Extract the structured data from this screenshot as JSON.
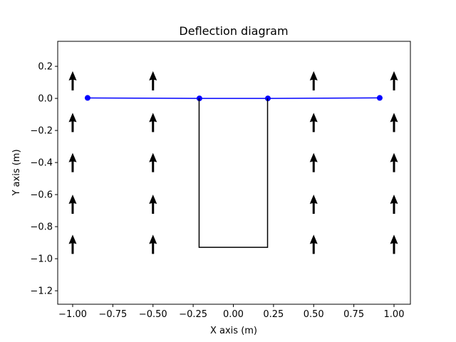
{
  "chart_data": {
    "type": "line",
    "title": "Deflection diagram",
    "xlabel": "X axis (m)",
    "ylabel": "Y axis (m)",
    "xlim": [
      -1.093,
      1.102
    ],
    "ylim": [
      -1.284,
      0.356
    ],
    "xticks": [
      {
        "value": -1,
        "label": "−1.00"
      },
      {
        "value": -0.75,
        "label": "−0.75"
      },
      {
        "value": -0.5,
        "label": "−0.50"
      },
      {
        "value": -0.25,
        "label": "−0.25"
      },
      {
        "value": 0,
        "label": "0.00"
      },
      {
        "value": 0.25,
        "label": "0.25"
      },
      {
        "value": 0.5,
        "label": "0.50"
      },
      {
        "value": 0.75,
        "label": "0.75"
      },
      {
        "value": 1,
        "label": "1.00"
      }
    ],
    "yticks": [
      0.2,
      {
        "value": 0,
        "label": "0.0"
      },
      {
        "value": -0.2,
        "label": "−0.2"
      },
      {
        "value": -0.4,
        "label": "−0.4"
      },
      {
        "value": -0.6,
        "label": "−0.6"
      },
      {
        "value": -0.8,
        "label": "−0.8"
      },
      {
        "value": -1.0,
        "label": "−1.0"
      },
      {
        "value": -1.2,
        "label": "−1.2"
      }
    ],
    "series": [
      {
        "color": "#0000ff",
        "marker": true,
        "x": [
          -0.907,
          -0.211,
          0.215,
          0.911
        ],
        "values": [
          0.003,
          0,
          0,
          0.003
        ]
      },
      {
        "color": "#000000",
        "marker": false,
        "x": [
          -0.213,
          -0.213,
          0.213,
          0.213
        ],
        "values": [
          0,
          -0.929,
          -0.929,
          0
        ]
      }
    ],
    "quiver": {
      "color": "#000000",
      "v": 0.12,
      "x": [
        -1,
        -1,
        -1,
        -1,
        -1,
        -0.5,
        -0.5,
        -0.5,
        -0.5,
        -0.5,
        0.5,
        0.5,
        0.5,
        0.5,
        0.5,
        1,
        1,
        1,
        1,
        1
      ],
      "y": [
        0.05,
        -0.21,
        -0.46,
        -0.72,
        -0.97,
        0.05,
        -0.21,
        -0.46,
        -0.72,
        -0.97,
        0.05,
        -0.21,
        -0.46,
        -0.72,
        -0.97,
        0.05,
        -0.21,
        -0.46,
        -0.72,
        -0.97
      ]
    }
  }
}
